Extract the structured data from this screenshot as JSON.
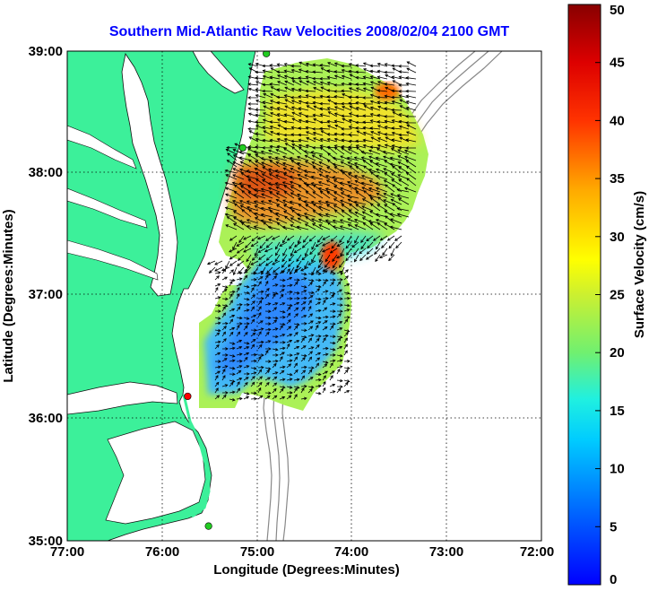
{
  "title": "Southern Mid-Atlantic Raw Velocities 2008/02/04 2100 GMT",
  "x_axis": {
    "label": "Longitude (Degrees:Minutes)",
    "ticks": [
      "77:00",
      "76:00",
      "75:00",
      "74:00",
      "73:00",
      "72:00"
    ]
  },
  "y_axis": {
    "label": "Latitude (Degrees:Minutes)",
    "ticks": [
      "39:00",
      "38:00",
      "37:00",
      "36:00",
      "35:00"
    ]
  },
  "colorbar": {
    "label": "Surface Velocity (cm/s)",
    "ticks": [
      "50",
      "45",
      "40",
      "35",
      "30",
      "25",
      "20",
      "15",
      "10",
      "5",
      "0"
    ],
    "min": 0,
    "max": 50
  },
  "colors": {
    "land": "#3cf09a",
    "ocean": "#ffffff",
    "title": "#0000ff",
    "station_green": "#22cc22",
    "station_red": "#ff0000"
  },
  "stations": [
    {
      "lon": -74.9,
      "lat": 38.98,
      "color": "green"
    },
    {
      "lon": -75.15,
      "lat": 38.21,
      "color": "green"
    },
    {
      "lon": -75.73,
      "lat": 36.18,
      "color": "red"
    },
    {
      "lon": -75.51,
      "lat": 35.12,
      "color": "green"
    }
  ]
}
